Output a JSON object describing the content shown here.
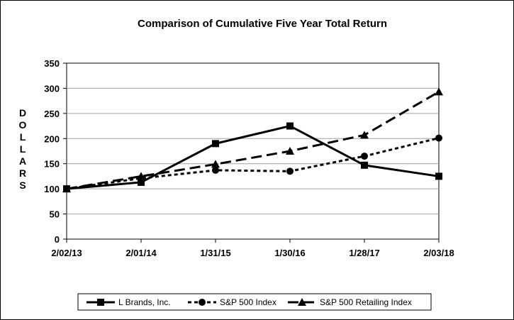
{
  "chart_data": {
    "type": "line",
    "title": "Comparison of Cumulative Five Year Total Return",
    "xlabel": "",
    "ylabel": "DOLLARS",
    "categories": [
      "2/02/13",
      "2/01/14",
      "1/31/15",
      "1/30/16",
      "1/28/17",
      "2/03/18"
    ],
    "ylim": [
      0,
      350
    ],
    "yticks": [
      0,
      50,
      100,
      150,
      200,
      250,
      300,
      350
    ],
    "grid": true,
    "legend": "bottom",
    "series": [
      {
        "name": "L Brands, Inc.",
        "values": [
          100,
          113,
          190,
          225,
          147,
          125
        ],
        "style": "solid",
        "marker": "square",
        "color": "#000000"
      },
      {
        "name": "S&P 500 Index",
        "values": [
          100,
          121,
          137,
          135,
          165,
          201
        ],
        "style": "dotted",
        "marker": "circle",
        "color": "#000000"
      },
      {
        "name": "S&P 500 Retailing Index",
        "values": [
          100,
          125,
          149,
          175,
          207,
          293
        ],
        "style": "dashed",
        "marker": "triangle",
        "color": "#000000"
      }
    ]
  }
}
